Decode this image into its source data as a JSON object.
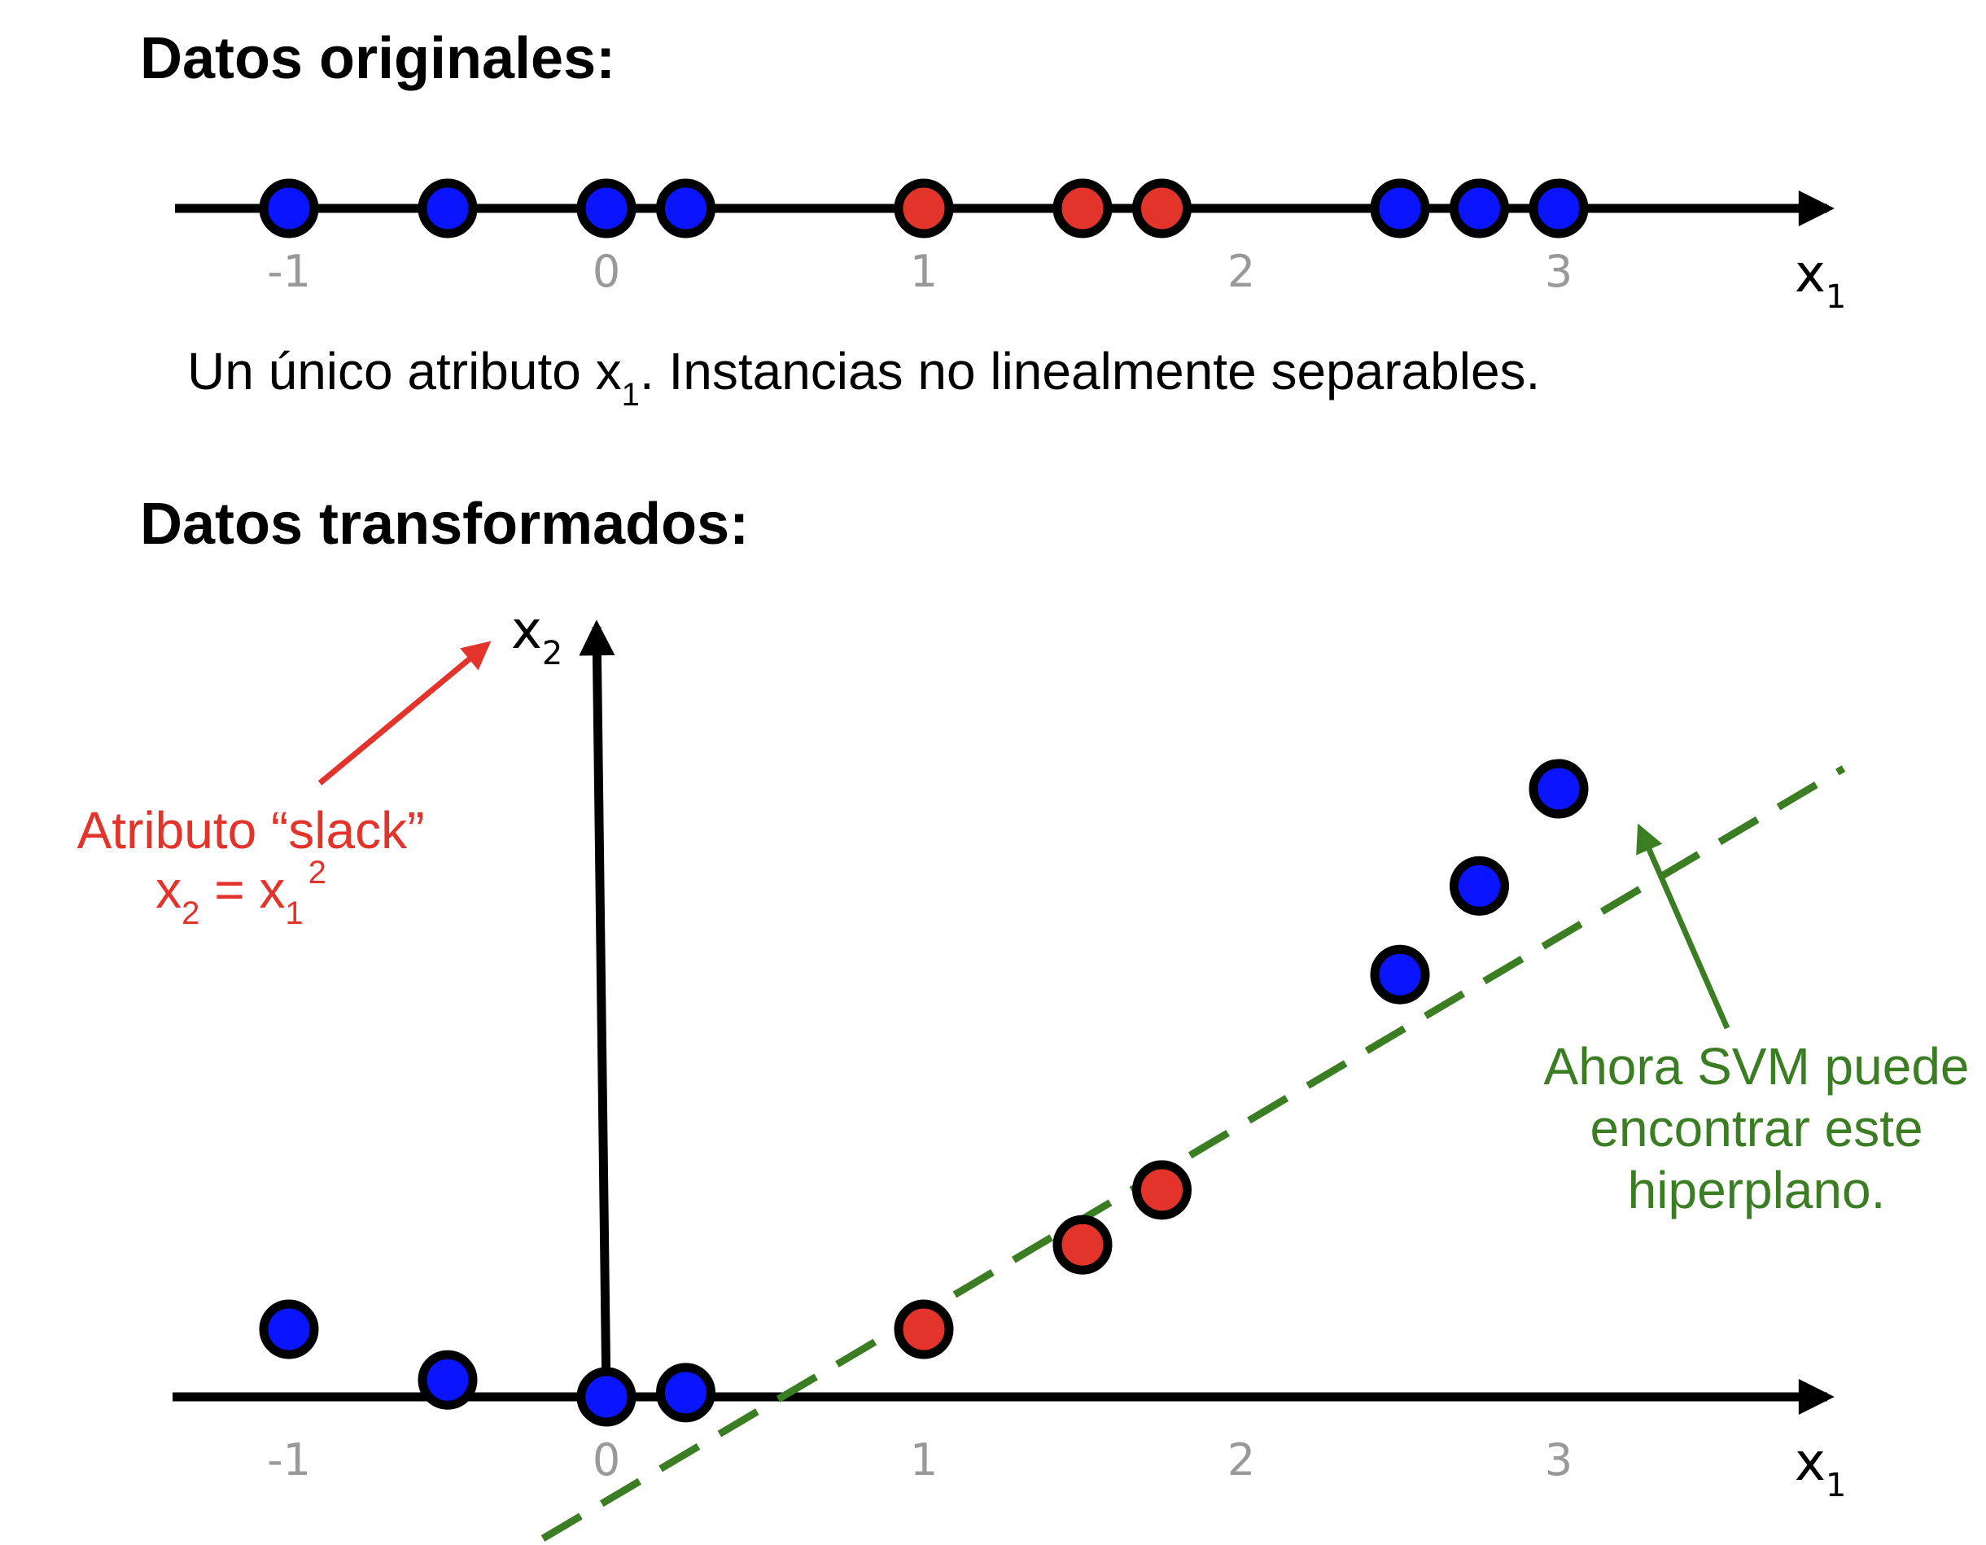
{
  "headings": {
    "original": "Datos originales:",
    "transformed": "Datos transformados:"
  },
  "caption": {
    "text_before": "Un único atributo x",
    "sub": "1",
    "text_after": ". Instancias no linealmente separables."
  },
  "axes": {
    "x_label_main": "x",
    "x_label_sub": "1",
    "y_label_main": "x",
    "y_label_sub": "2",
    "ticks": [
      "-1",
      "0",
      "1",
      "2",
      "3"
    ]
  },
  "slack_note": {
    "line1": "Atributo “slack”",
    "x2": "x",
    "x2_sub": "2",
    "equals": " = ",
    "x1": "x",
    "x1_sub": "1",
    "power": "2"
  },
  "svm_note": {
    "line1": "Ahora SVM puede",
    "line2": "encontrar este",
    "line3": "hiperplano."
  },
  "colors": {
    "blue_class": "#0a14ff",
    "red_class": "#e3342b",
    "hyperplane": "#3a7d22",
    "slack_arrow": "#e3342b"
  },
  "chart_data": {
    "type": "scatter",
    "x": [
      -1,
      -0.5,
      0,
      0.25,
      1,
      1.5,
      1.75,
      2.5,
      2.75,
      3
    ],
    "class": [
      "blue",
      "blue",
      "blue",
      "blue",
      "red",
      "red",
      "red",
      "blue",
      "blue",
      "blue"
    ],
    "y_transformed": [
      1,
      0.25,
      0,
      0.0625,
      1,
      2.25,
      3.0625,
      6.25,
      7.5625,
      9
    ],
    "xlim": [
      -1.35,
      3.9
    ],
    "xticks": [
      -1,
      0,
      1,
      2,
      3
    ],
    "hyperplane": {
      "x": [
        -0.2,
        3.9
      ],
      "y": [
        -2.5,
        9.3
      ]
    }
  }
}
